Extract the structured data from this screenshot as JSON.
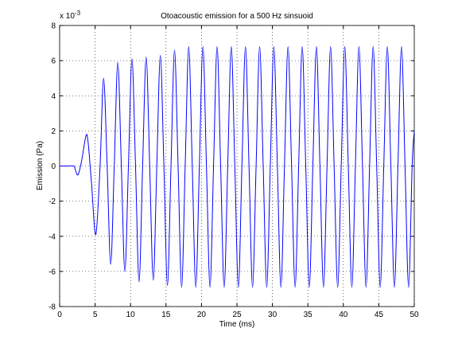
{
  "chart_data": {
    "type": "line",
    "title": "Otoacoustic emission for a 500 Hz sinsuoid",
    "x_label": "Time (ms)",
    "y_label": "Emission (Pa)",
    "y_multiplier_base": "x 10",
    "y_multiplier_exponent": "-3",
    "color": "#0000ff",
    "grid": true,
    "xlim": [
      0,
      50
    ],
    "xticks": [
      0,
      5,
      10,
      15,
      20,
      25,
      30,
      35,
      40,
      45,
      50
    ],
    "ylim": [
      -8,
      8
    ],
    "yticks": [
      -8,
      -6,
      -4,
      -2,
      0,
      2,
      4,
      6,
      8
    ],
    "x": [
      0,
      1,
      2,
      2.2,
      2.6,
      3.1,
      3.7,
      4.0,
      4.5,
      5.1,
      5.7,
      6.2,
      6.7,
      7.2,
      7.7,
      8.2,
      8.7,
      9.2,
      9.7,
      10.2,
      10.7,
      11.2,
      11.7,
      12.2,
      12.7,
      13.2,
      13.7,
      14.2,
      14.7,
      15.2,
      15.7,
      16.2,
      16.7,
      17.2,
      17.7,
      18.2,
      18.7,
      19.2,
      19.7,
      20.2,
      20.7,
      21.2,
      21.7,
      22.2,
      22.7,
      23.2,
      23.7,
      24.2,
      24.7,
      25.2,
      25.7,
      26.2,
      26.7,
      27.2,
      27.7,
      28.2,
      28.7,
      29.2,
      29.7,
      30.2,
      30.7,
      31.2,
      31.7,
      32.2,
      32.7,
      33.2,
      33.7,
      34.2,
      34.7,
      35.2,
      35.7,
      36.2,
      36.7,
      37.2,
      37.7,
      38.2,
      38.7,
      39.2,
      39.7,
      40.2,
      40.7,
      41.2,
      41.7,
      42.2,
      42.7,
      43.2,
      43.7,
      44.2,
      44.7,
      45.2,
      45.7,
      46.2,
      46.7,
      47.2,
      47.7,
      48.2,
      48.7,
      49.2,
      49.7,
      50
    ],
    "values": [
      0,
      0,
      0,
      -0.2,
      -0.5,
      0.3,
      1.7,
      1.4,
      -1.0,
      -3.9,
      0,
      5.0,
      0,
      -5.6,
      0,
      5.9,
      0,
      -6.0,
      0,
      6.1,
      0,
      -6.6,
      0,
      6.2,
      0,
      -6.5,
      0,
      6.3,
      0,
      -6.8,
      0,
      6.6,
      0,
      -6.9,
      0,
      6.8,
      0,
      -6.9,
      0,
      6.8,
      0,
      -6.9,
      0,
      6.8,
      0,
      -6.9,
      0,
      6.8,
      0,
      -6.9,
      0,
      6.8,
      0,
      -6.9,
      0,
      6.8,
      0,
      -6.9,
      0,
      6.8,
      0,
      -6.9,
      0,
      6.8,
      0,
      -6.9,
      0,
      6.8,
      0,
      -6.9,
      0,
      6.8,
      0,
      -6.9,
      0,
      6.8,
      0,
      -6.9,
      0,
      6.8,
      0,
      -6.9,
      0,
      6.8,
      0,
      -6.9,
      0,
      6.8,
      0,
      -6.9,
      0,
      6.8,
      0,
      -6.9,
      0,
      6.8,
      0,
      -6.9,
      0,
      2
    ]
  }
}
